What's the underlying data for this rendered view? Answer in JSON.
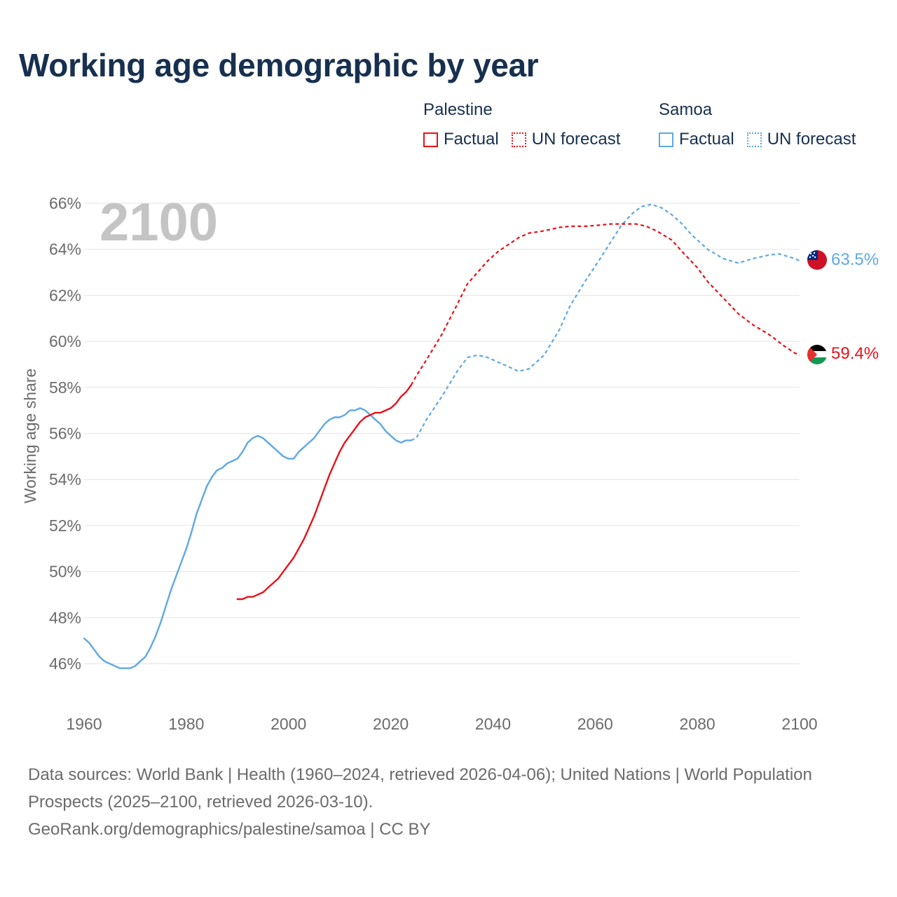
{
  "title": "Working age demographic by year",
  "legend": {
    "groups": [
      {
        "name": "Palestine",
        "factual_label": "Factual",
        "forecast_label": "UN forecast",
        "color": "#e8111a"
      },
      {
        "name": "Samoa",
        "factual_label": "Factual",
        "forecast_label": "UN forecast",
        "color": "#5fa8e3"
      }
    ]
  },
  "footer": {
    "sources": "Data sources: World Bank | Health (1960–2024, retrieved 2026-04-06); United Nations | World Population Prospects (2025–2100, retrieved 2026-03-10).",
    "credit": "GeoRank.org/demographics/palestine/samoa | CC BY"
  },
  "chart_data": {
    "type": "line",
    "title": "Working age demographic by year",
    "xlabel": "",
    "ylabel": "Working age share",
    "year_label": "2100",
    "xlim": [
      1960,
      2100
    ],
    "ylim": [
      44.5,
      66.5
    ],
    "x_ticks": [
      1960,
      1980,
      2000,
      2020,
      2040,
      2060,
      2080,
      2100
    ],
    "y_ticks": [
      46,
      48,
      50,
      52,
      54,
      56,
      58,
      60,
      62,
      64,
      66
    ],
    "y_tick_labels": [
      "46%",
      "48%",
      "50%",
      "52%",
      "54%",
      "56%",
      "58%",
      "60%",
      "62%",
      "64%",
      "66%"
    ],
    "grid": true,
    "series": [
      {
        "name": "Palestine",
        "color": "#e8111a",
        "end_label": "59.4%",
        "factual": {
          "x": [
            1990,
            1991,
            1992,
            1993,
            1994,
            1995,
            1996,
            1997,
            1998,
            1999,
            2000,
            2001,
            2002,
            2003,
            2004,
            2005,
            2006,
            2007,
            2008,
            2009,
            2010,
            2011,
            2012,
            2013,
            2014,
            2015,
            2016,
            2017,
            2018,
            2019,
            2020,
            2021,
            2022,
            2023,
            2024
          ],
          "y": [
            48.8,
            48.8,
            48.9,
            48.9,
            49.0,
            49.1,
            49.3,
            49.5,
            49.7,
            50.0,
            50.3,
            50.6,
            51.0,
            51.4,
            51.9,
            52.4,
            53.0,
            53.6,
            54.2,
            54.7,
            55.2,
            55.6,
            55.9,
            56.2,
            56.5,
            56.7,
            56.8,
            56.9,
            56.9,
            57.0,
            57.1,
            57.3,
            57.6,
            57.8,
            58.1
          ]
        },
        "forecast": {
          "x": [
            2024,
            2025,
            2027,
            2030,
            2033,
            2035,
            2037,
            2039,
            2041,
            2043,
            2045,
            2047,
            2050,
            2053,
            2055,
            2058,
            2061,
            2063,
            2066,
            2068,
            2070,
            2072,
            2075,
            2077,
            2080,
            2082,
            2085,
            2088,
            2091,
            2094,
            2097,
            2099,
            2100
          ],
          "y": [
            58.1,
            58.5,
            59.2,
            60.3,
            61.6,
            62.5,
            63.0,
            63.5,
            63.9,
            64.2,
            64.5,
            64.7,
            64.8,
            64.95,
            65.0,
            65.0,
            65.05,
            65.1,
            65.1,
            65.1,
            65.0,
            64.8,
            64.4,
            63.9,
            63.2,
            62.6,
            61.9,
            61.2,
            60.7,
            60.3,
            59.8,
            59.5,
            59.4
          ]
        }
      },
      {
        "name": "Samoa",
        "color": "#5fa8e3",
        "end_label": "63.5%",
        "factual": {
          "x": [
            1960,
            1961,
            1962,
            1963,
            1964,
            1965,
            1966,
            1967,
            1968,
            1969,
            1970,
            1971,
            1972,
            1973,
            1974,
            1975,
            1976,
            1977,
            1978,
            1979,
            1980,
            1981,
            1982,
            1983,
            1984,
            1985,
            1986,
            1987,
            1988,
            1989,
            1990,
            1991,
            1992,
            1993,
            1994,
            1995,
            1996,
            1997,
            1998,
            1999,
            2000,
            2001,
            2002,
            2003,
            2004,
            2005,
            2006,
            2007,
            2008,
            2009,
            2010,
            2011,
            2012,
            2013,
            2014,
            2015,
            2016,
            2017,
            2018,
            2019,
            2020,
            2021,
            2022,
            2023,
            2024
          ],
          "y": [
            47.1,
            46.9,
            46.6,
            46.3,
            46.1,
            46.0,
            45.9,
            45.8,
            45.8,
            45.8,
            45.9,
            46.1,
            46.3,
            46.7,
            47.2,
            47.8,
            48.5,
            49.2,
            49.8,
            50.4,
            51.0,
            51.7,
            52.5,
            53.1,
            53.7,
            54.1,
            54.4,
            54.5,
            54.7,
            54.8,
            54.9,
            55.2,
            55.6,
            55.8,
            55.9,
            55.8,
            55.6,
            55.4,
            55.2,
            55.0,
            54.9,
            54.9,
            55.2,
            55.4,
            55.6,
            55.8,
            56.1,
            56.4,
            56.6,
            56.7,
            56.7,
            56.8,
            57.0,
            57.0,
            57.1,
            57.0,
            56.8,
            56.6,
            56.4,
            56.1,
            55.9,
            55.7,
            55.6,
            55.7,
            55.7
          ]
        },
        "forecast": {
          "x": [
            2024,
            2025,
            2027,
            2030,
            2033,
            2035,
            2037,
            2039,
            2041,
            2043,
            2045,
            2047,
            2050,
            2053,
            2055,
            2058,
            2061,
            2063,
            2065,
            2067,
            2069,
            2071,
            2073,
            2075,
            2077,
            2079,
            2082,
            2085,
            2088,
            2091,
            2094,
            2096,
            2099,
            2100
          ],
          "y": [
            55.7,
            55.8,
            56.6,
            57.6,
            58.7,
            59.3,
            59.4,
            59.3,
            59.1,
            58.9,
            58.7,
            58.8,
            59.4,
            60.5,
            61.5,
            62.6,
            63.6,
            64.3,
            65.0,
            65.5,
            65.85,
            65.95,
            65.8,
            65.5,
            65.1,
            64.6,
            64.0,
            63.6,
            63.4,
            63.6,
            63.75,
            63.8,
            63.6,
            63.5
          ]
        }
      }
    ]
  }
}
